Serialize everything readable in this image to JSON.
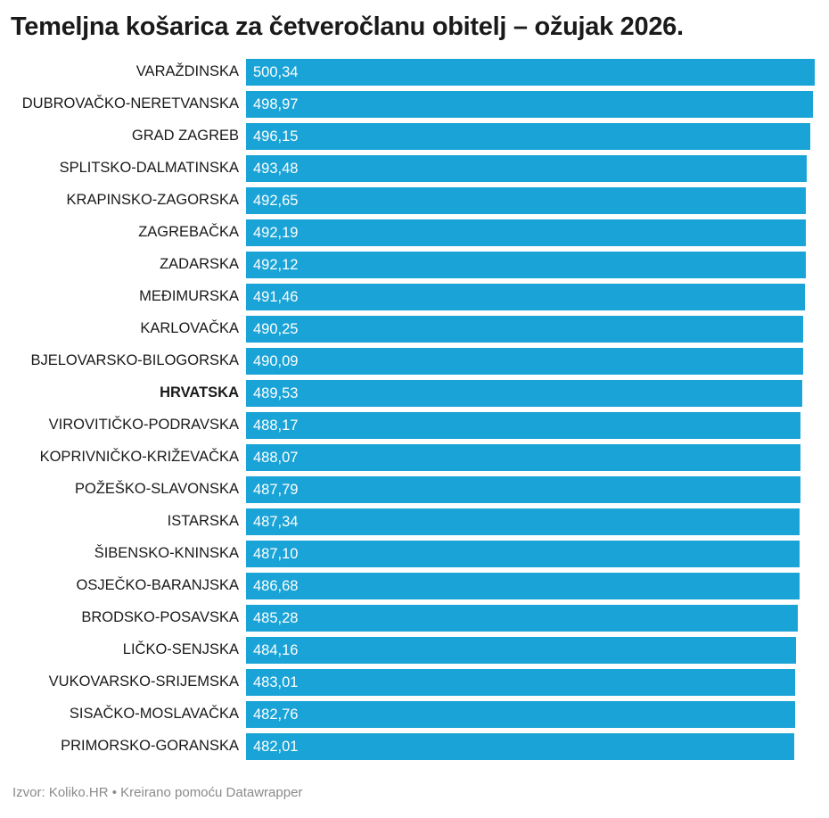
{
  "title": "Temeljna košarica za četveročlanu obitelj – ožujak 2026.",
  "footer": {
    "source": "Izvor: Koliko.HR",
    "separator": "•",
    "credit": "Kreirano pomoću Datawrapper"
  },
  "colors": {
    "bar": "#1aa3d6"
  },
  "chart_data": {
    "type": "bar",
    "orientation": "horizontal",
    "title": "Temeljna košarica za četveročlanu obitelj – ožujak 2026.",
    "categories": [
      "VARAŽDINSKA",
      "DUBROVAČKO-NERETVANSKA",
      "GRAD ZAGREB",
      "SPLITSKO-DALMATINSKA",
      "KRAPINSKO-ZAGORSKA",
      "ZAGREBAČKA",
      "ZADARSKA",
      "MEĐIMURSKA",
      "KARLOVAČKA",
      "BJELOVARSKO-BILOGORSKA",
      "HRVATSKA",
      "VIROVITIČKO-PODRAVSKA",
      "KOPRIVNIČKO-KRIŽEVAČKA",
      "POŽEŠKO-SLAVONSKA",
      "ISTARSKA",
      "ŠIBENSKO-KNINSKA",
      "OSJEČKO-BARANJSKA",
      "BRODSKO-POSAVSKA",
      "LIČKO-SENJSKA",
      "VUKOVARSKO-SRIJEMSKA",
      "SISAČKO-MOSLAVAČKA",
      "PRIMORSKO-GORANSKA"
    ],
    "values": [
      500.34,
      498.97,
      496.15,
      493.48,
      492.65,
      492.19,
      492.12,
      491.46,
      490.25,
      490.09,
      489.53,
      488.17,
      488.07,
      487.79,
      487.34,
      487.1,
      486.68,
      485.28,
      484.16,
      483.01,
      482.76,
      482.01
    ],
    "value_labels": [
      "500,34",
      "498,97",
      "496,15",
      "493,48",
      "492,65",
      "492,19",
      "492,12",
      "491,46",
      "490,25",
      "490,09",
      "489,53",
      "488,17",
      "488,07",
      "487,79",
      "487,34",
      "487,10",
      "486,68",
      "485,28",
      "484,16",
      "483,01",
      "482,76",
      "482,01"
    ],
    "highlight": "HRVATSKA",
    "xlim": [
      0,
      500.34
    ],
    "grid": false,
    "legend": "none"
  }
}
